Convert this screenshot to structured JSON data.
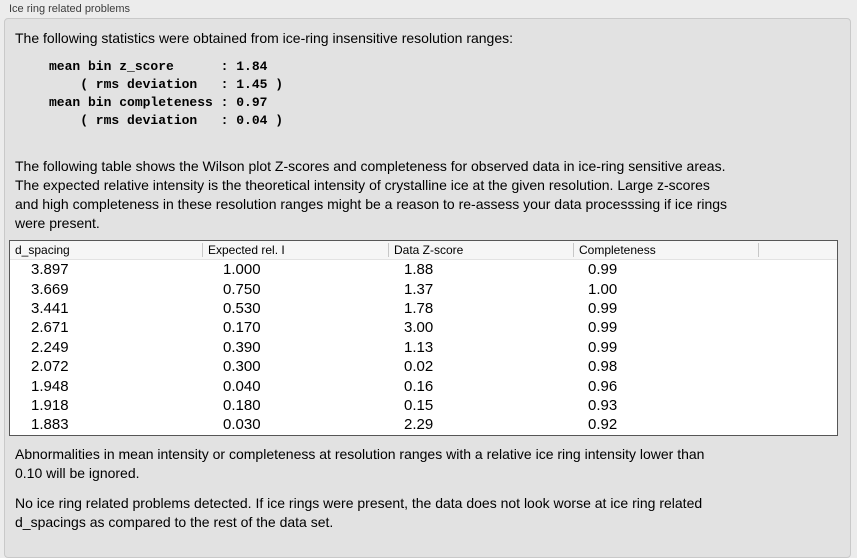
{
  "panel": {
    "title": "Ice ring related problems"
  },
  "intro": "The following statistics were obtained from ice-ring insensitive resolution ranges:",
  "stats_lines": [
    "mean bin z_score      : 1.84",
    "    ( rms deviation   : 1.45 )",
    "mean bin completeness : 0.97",
    "    ( rms deviation   : 0.04 )"
  ],
  "table_description_lines": [
    "The following table shows the Wilson plot Z-scores and completeness for observed data in ice-ring sensitive areas.",
    "The expected relative intensity is the theoretical intensity of crystalline ice at the given resolution. Large z-scores",
    "and high completeness in these resolution ranges might be a reason to re-assess your data processsing if ice rings",
    "were present."
  ],
  "table": {
    "columns": [
      "d_spacing",
      "Expected rel. I",
      "Data Z-score",
      "Completeness"
    ],
    "rows": [
      [
        "3.897",
        "1.000",
        "1.88",
        "0.99"
      ],
      [
        "3.669",
        "0.750",
        "1.37",
        "1.00"
      ],
      [
        "3.441",
        "0.530",
        "1.78",
        "0.99"
      ],
      [
        "2.671",
        "0.170",
        "3.00",
        "0.99"
      ],
      [
        "2.249",
        "0.390",
        "1.13",
        "0.99"
      ],
      [
        "2.072",
        "0.300",
        "0.02",
        "0.98"
      ],
      [
        "1.948",
        "0.040",
        "0.16",
        "0.96"
      ],
      [
        "1.918",
        "0.180",
        "0.15",
        "0.93"
      ],
      [
        "1.883",
        "0.030",
        "2.29",
        "0.92"
      ]
    ]
  },
  "ignore_note_lines": [
    "Abnormalities in mean intensity or completeness at resolution ranges with a relative ice ring intensity lower than",
    "0.10 will be ignored."
  ],
  "conclusion_lines": [
    "No ice ring related problems detected. If ice rings were present, the data does not look worse at ice ring related",
    "d_spacings as compared to the rest of the data set."
  ],
  "colors": {
    "page_bg": "#ececec",
    "box_fill": "#e2e2e2",
    "table_border": "#565656",
    "header_bg": "#f6f6f6"
  }
}
